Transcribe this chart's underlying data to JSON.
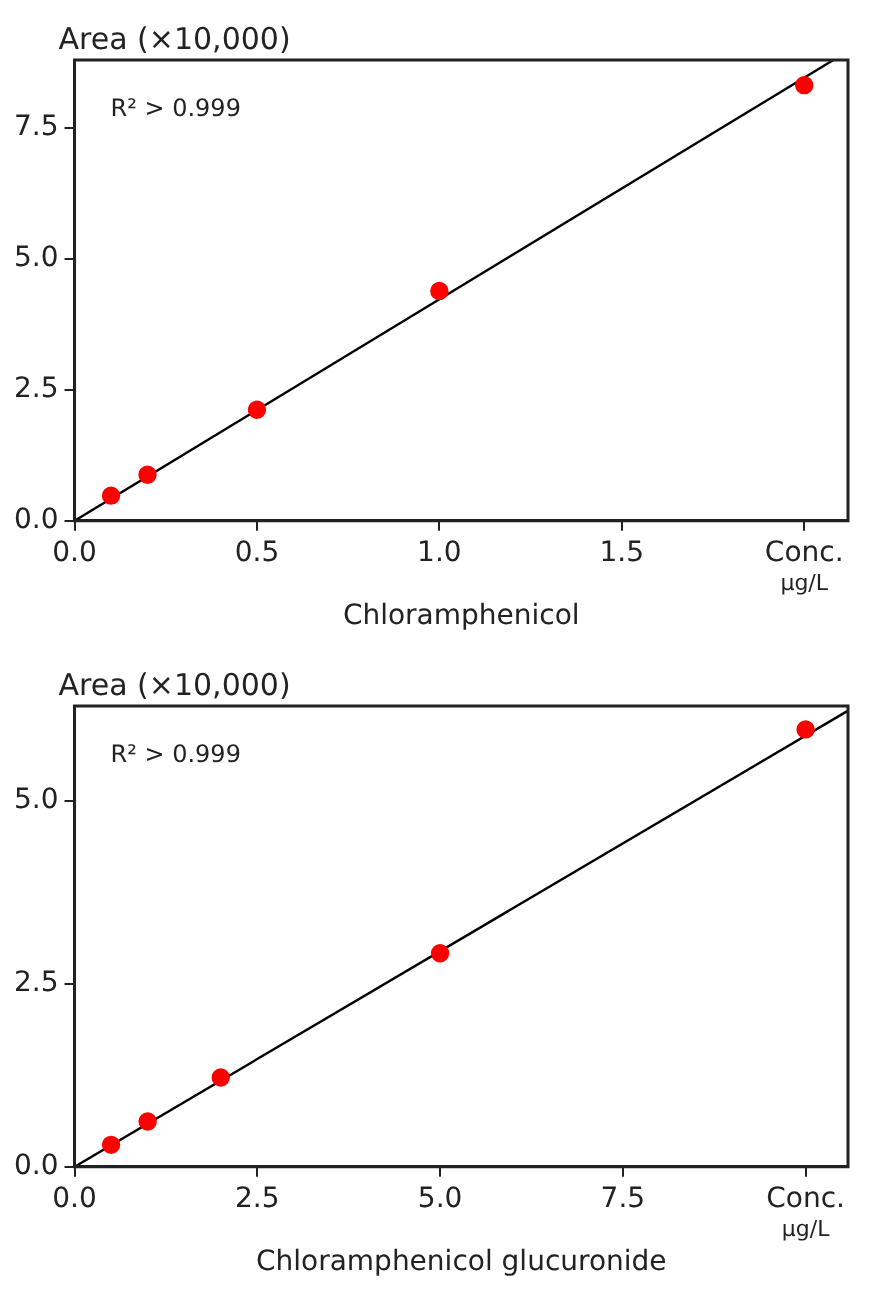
{
  "chart_data": [
    {
      "type": "scatter",
      "xlabel": "Chloramphenicol",
      "ylabel": "Area (×10,000)",
      "annotations": [
        "R² > 0.999",
        "μg/L"
      ],
      "x": [
        0.1,
        0.2,
        0.5,
        1.0,
        2.0
      ],
      "series": [
        {
          "type": "scatter",
          "color": "#ff0000",
          "marker": "circle",
          "values": [
            0.48,
            0.88,
            2.12,
            4.39,
            8.32
          ]
        },
        {
          "type": "line",
          "color": "#000000",
          "marker": "none",
          "line_style": "solid",
          "x": [
            0,
            2.08
          ],
          "values": [
            0,
            8.8
          ]
        }
      ],
      "xlim": [
        0,
        2.12
      ],
      "xticks": [
        {
          "value": 0,
          "label": "0.0"
        },
        {
          "value": 0.5,
          "label": "0.5"
        },
        {
          "value": 1,
          "label": "1.0"
        },
        {
          "value": 1.5,
          "label": "1.5"
        },
        {
          "value": 2,
          "label": "Conc."
        }
      ],
      "ylim": [
        0,
        8.8
      ],
      "yticks": [
        {
          "value": 0,
          "label": "0.0"
        },
        {
          "value": 2.5,
          "label": "2.5"
        },
        {
          "value": 5,
          "label": "5.0"
        },
        {
          "value": 7.5,
          "label": "7.5"
        }
      ]
    },
    {
      "type": "scatter",
      "xlabel": "Chloramphenicol glucuronide",
      "ylabel": "Area (×10,000)",
      "annotations": [
        "R² > 0.999",
        "μg/L"
      ],
      "x": [
        0.5,
        1,
        2,
        5,
        10
      ],
      "series": [
        {
          "type": "scatter",
          "color": "#ff0000",
          "marker": "circle",
          "values": [
            0.3,
            0.62,
            1.22,
            2.92,
            5.98
          ]
        },
        {
          "type": "line",
          "color": "#000000",
          "marker": "none",
          "line_style": "solid",
          "x": [
            0,
            10.57
          ],
          "values": [
            0,
            6.23
          ]
        }
      ],
      "xlim": [
        0,
        10.58
      ],
      "xticks": [
        {
          "value": 0,
          "label": "0.0"
        },
        {
          "value": 2.5,
          "label": "2.5"
        },
        {
          "value": 5,
          "label": "5.0"
        },
        {
          "value": 7.5,
          "label": "7.5"
        },
        {
          "value": 10,
          "label": "Conc."
        }
      ],
      "ylim": [
        0,
        6.3
      ],
      "yticks": [
        {
          "value": 0,
          "label": "0.0"
        },
        {
          "value": 2.5,
          "label": "2.5"
        },
        {
          "value": 5,
          "label": "5.0"
        }
      ]
    }
  ]
}
